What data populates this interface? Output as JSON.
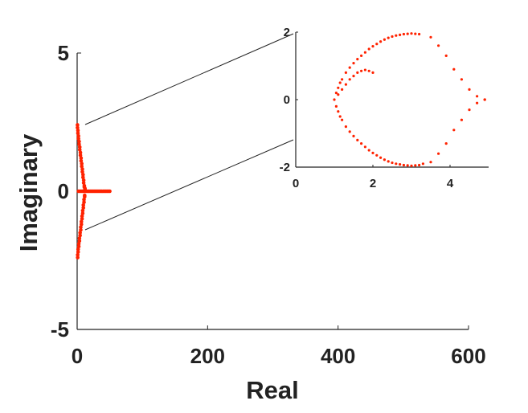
{
  "chart_data": [
    {
      "type": "scatter",
      "xlabel": "Real",
      "ylabel": "Imaginary",
      "xlim": [
        0,
        600
      ],
      "ylim": [
        -5,
        5
      ],
      "x_ticks": [
        "0",
        "200",
        "400",
        "600"
      ],
      "y_ticks": [
        "-5",
        "0",
        "5"
      ],
      "grid": false,
      "marker_color": "#ff2200",
      "series": [
        {
          "x": [
            0.5,
            0.8,
            1.2,
            1.5,
            2.0,
            2.5,
            3.0,
            3.5,
            4.0,
            4.5,
            5.0,
            5.5,
            6.0,
            6.5,
            7.0,
            7.5,
            8.0,
            8.5,
            9.0,
            9.5,
            10.0,
            10.5,
            11.0,
            11.5,
            12.0,
            0.5,
            0.8,
            1.2,
            1.5,
            2.0,
            2.5,
            3.0,
            3.5,
            4.0,
            4.5,
            5.0,
            5.5,
            6.0,
            6.5,
            7.0,
            7.5,
            8.0,
            8.5,
            9.0,
            9.5,
            10.0,
            10.5,
            11.0,
            11.5,
            12.0,
            2,
            4,
            6,
            8,
            10,
            12,
            14,
            16,
            18,
            20,
            22,
            24,
            26,
            28,
            30,
            32,
            34,
            36,
            38,
            40,
            42,
            44,
            46,
            48,
            50
          ],
          "y": [
            2.4,
            -2.4,
            2.2,
            -2.2,
            2.0,
            -2.0,
            1.8,
            -1.8,
            1.6,
            -1.6,
            1.4,
            -1.4,
            1.2,
            -1.2,
            1.0,
            -1.0,
            0.8,
            -0.8,
            0.6,
            -0.6,
            0.4,
            -0.4,
            0.2,
            -0.2,
            0.1,
            2.3,
            -2.3,
            2.1,
            -2.1,
            1.9,
            -1.9,
            1.7,
            -1.7,
            1.5,
            -1.5,
            1.3,
            -1.3,
            1.1,
            -1.1,
            0.9,
            -0.9,
            0.7,
            -0.7,
            0.5,
            -0.5,
            0.3,
            -0.3,
            0.15,
            -0.15,
            0.05,
            0,
            0,
            0,
            0,
            0,
            0,
            0,
            0,
            0,
            0,
            0,
            0,
            0,
            0,
            0,
            0,
            0,
            0,
            0,
            0,
            0,
            0,
            0,
            0,
            0
          ]
        }
      ]
    },
    {
      "type": "scatter",
      "xlabel": "",
      "ylabel": "",
      "xlim": [
        0,
        5
      ],
      "ylim": [
        -2,
        2
      ],
      "x_ticks": [
        "0",
        "2",
        "4"
      ],
      "y_ticks": [
        "-2",
        "0",
        "2"
      ],
      "grid": false,
      "marker_color": "#ff2200",
      "series": [
        {
          "x": [
            1.0,
            1.05,
            1.1,
            1.15,
            1.2,
            1.3,
            1.4,
            1.5,
            1.6,
            1.7,
            1.8,
            1.9,
            2.0,
            2.1,
            2.2,
            2.3,
            2.4,
            2.5,
            2.6,
            2.7,
            2.8,
            2.9,
            3.0,
            3.1,
            3.2,
            1.05,
            1.1,
            1.15,
            1.2,
            1.3,
            1.4,
            1.5,
            1.6,
            1.7,
            1.8,
            1.9,
            2.0,
            2.1,
            2.2,
            2.3,
            2.4,
            2.5,
            2.6,
            2.7,
            2.8,
            2.9,
            3.0,
            3.1,
            3.2,
            3.3,
            3.5,
            3.7,
            3.9,
            4.1,
            4.3,
            4.5,
            4.7,
            4.9,
            3.5,
            3.7,
            3.9,
            4.1,
            4.3,
            4.5,
            4.7,
            4.9,
            1.1,
            1.2,
            1.3,
            1.4,
            1.5,
            1.6,
            1.7,
            1.8,
            1.9,
            2.0
          ],
          "y": [
            0.0,
            0.2,
            0.35,
            0.5,
            0.6,
            0.8,
            0.95,
            1.08,
            1.2,
            1.3,
            1.4,
            1.5,
            1.58,
            1.65,
            1.72,
            1.78,
            1.83,
            1.87,
            1.9,
            1.92,
            1.94,
            1.95,
            1.96,
            1.95,
            1.94,
            -0.2,
            -0.35,
            -0.5,
            -0.6,
            -0.8,
            -0.95,
            -1.08,
            -1.2,
            -1.3,
            -1.4,
            -1.5,
            -1.58,
            -1.65,
            -1.72,
            -1.78,
            -1.83,
            -1.87,
            -1.9,
            -1.92,
            -1.94,
            -1.95,
            -1.96,
            -1.95,
            -1.94,
            -1.9,
            1.85,
            1.6,
            1.3,
            0.9,
            0.6,
            0.3,
            0.1,
            0.0,
            -1.85,
            -1.6,
            -1.3,
            -0.9,
            -0.6,
            -0.3,
            -0.1,
            0.0,
            0.15,
            0.3,
            0.45,
            0.6,
            0.7,
            0.8,
            0.85,
            0.88,
            0.85,
            0.8
          ]
        }
      ]
    }
  ]
}
